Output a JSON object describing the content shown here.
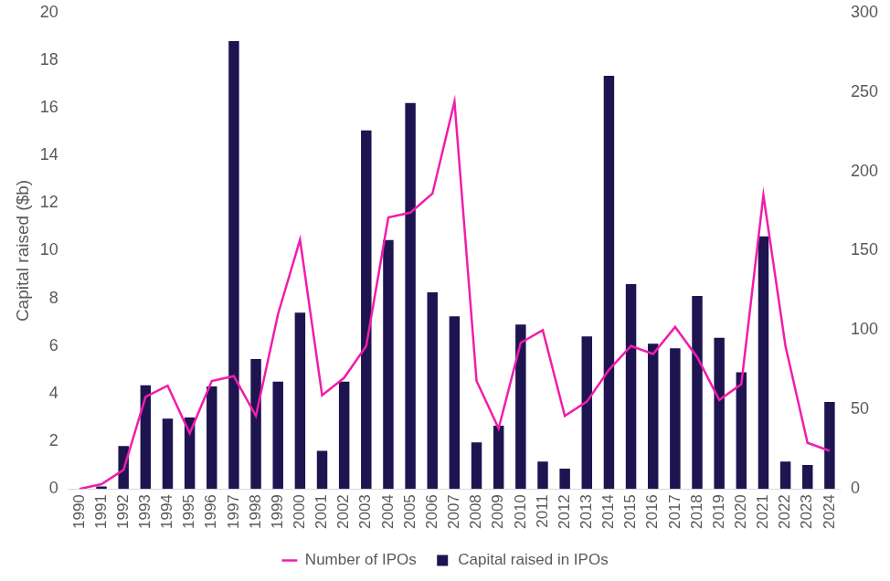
{
  "chart_data": {
    "type": "bar",
    "y_label": "Capital raised ($b)",
    "categories": [
      "1990",
      "1991",
      "1992",
      "1993",
      "1994",
      "1995",
      "1996",
      "1997",
      "1998",
      "1999",
      "2000",
      "2001",
      "2002",
      "2003",
      "2004",
      "2005",
      "2006",
      "2007",
      "2008",
      "2009",
      "2010",
      "2011",
      "2012",
      "2013",
      "2014",
      "2015",
      "2016",
      "2017",
      "2018",
      "2019",
      "2020",
      "2021",
      "2022",
      "2023",
      "2024"
    ],
    "series": [
      {
        "name": "Capital raised in IPOs",
        "type": "bar",
        "color": "#1e1450",
        "values": [
          0,
          0.1,
          1.8,
          4.35,
          2.95,
          3.0,
          4.3,
          18.8,
          5.45,
          4.5,
          7.4,
          1.6,
          4.5,
          15.05,
          10.45,
          16.2,
          8.25,
          7.25,
          1.95,
          2.65,
          6.9,
          1.15,
          0.85,
          6.4,
          17.35,
          8.6,
          6.1,
          5.9,
          8.1,
          6.35,
          4.9,
          10.6,
          1.15,
          1.0,
          3.65
        ]
      },
      {
        "name": "Number of IPOs",
        "type": "line",
        "color": "#f21cab",
        "axis": "y2",
        "values": [
          0,
          3,
          12,
          58,
          65,
          35,
          68,
          71,
          46,
          110,
          157,
          59,
          70,
          90,
          171,
          174,
          186,
          244,
          68,
          38,
          92,
          100,
          46,
          55,
          75,
          90,
          85,
          102,
          83,
          56,
          66,
          185,
          90,
          29,
          24
        ]
      }
    ],
    "ylim": [
      0,
      20
    ],
    "yticks": [
      0,
      2,
      4,
      6,
      8,
      10,
      12,
      14,
      16,
      18,
      20
    ],
    "y2lim": [
      0,
      300
    ],
    "y2ticks": [
      0,
      50,
      100,
      150,
      200,
      250,
      300
    ],
    "grid": false,
    "legend": "bottom"
  }
}
